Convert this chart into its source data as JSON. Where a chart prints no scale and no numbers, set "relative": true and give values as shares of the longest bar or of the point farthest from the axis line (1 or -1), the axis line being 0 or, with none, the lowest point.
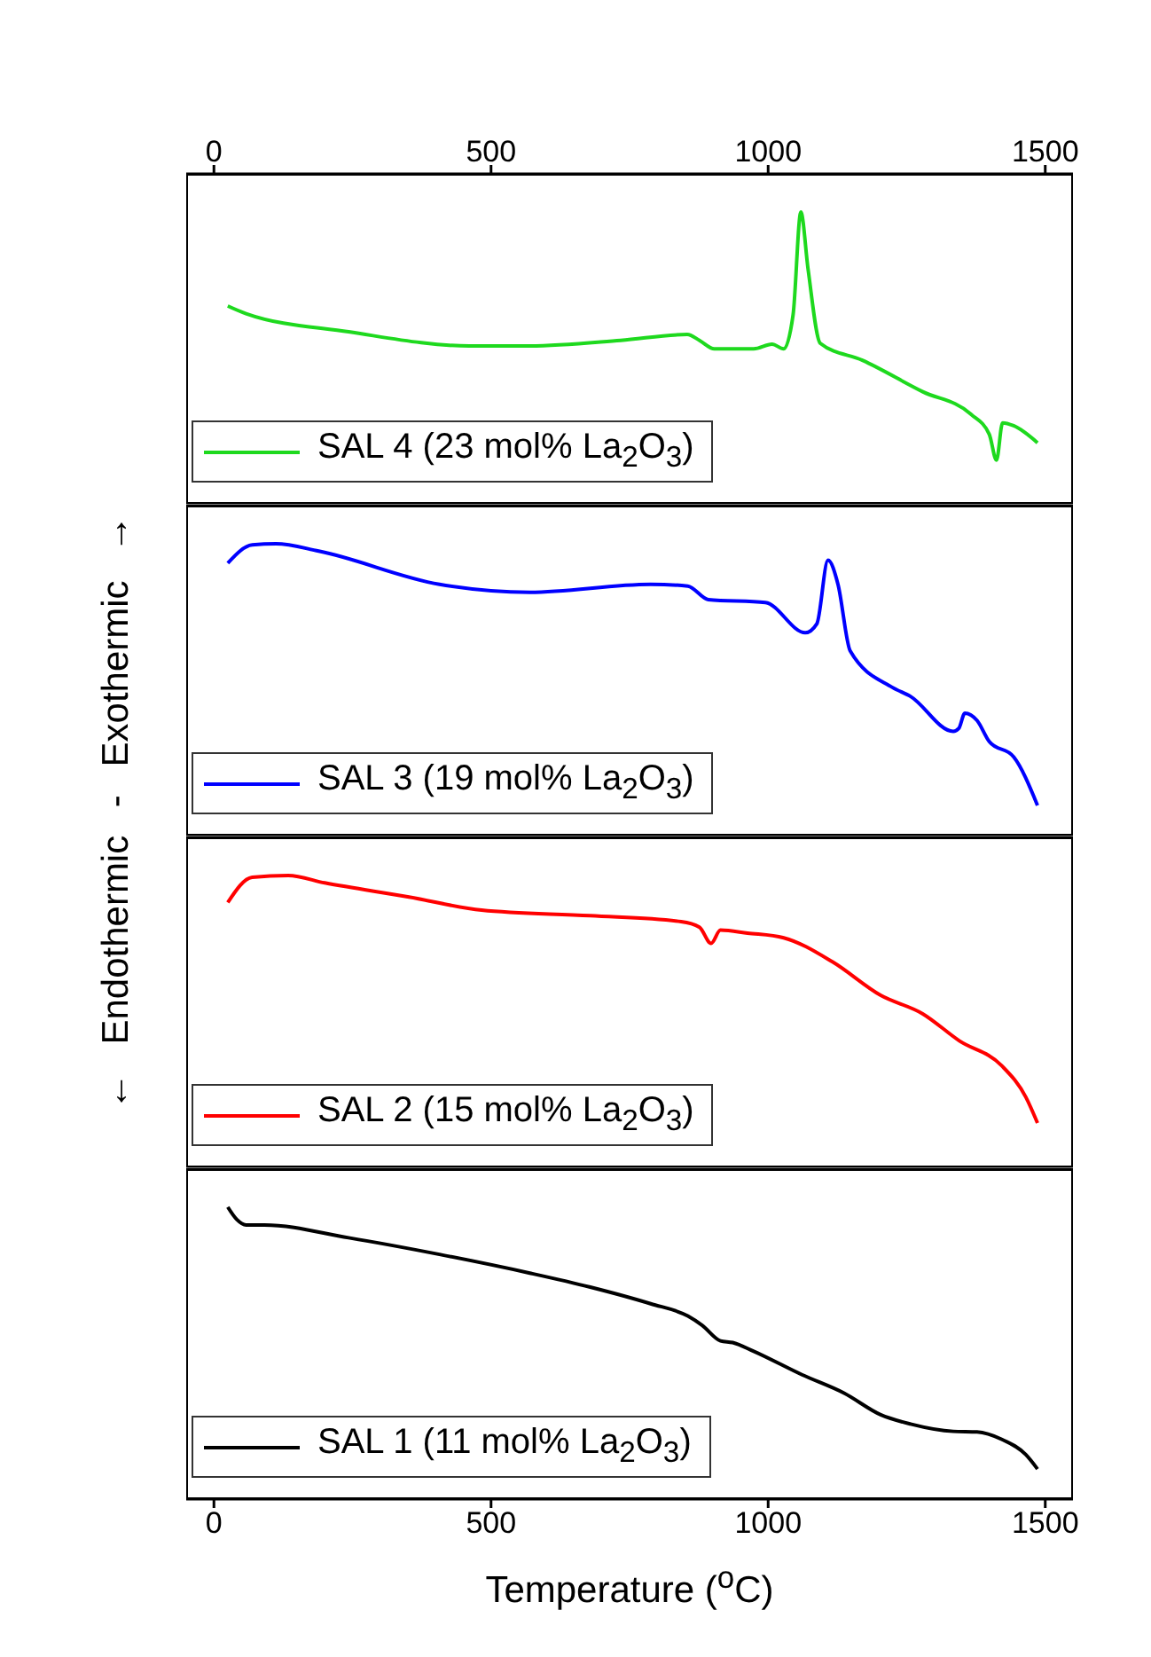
{
  "chart_data": [
    {
      "type": "line",
      "relative": true,
      "ylabel": "← Endothermic - Exothermic →",
      "xlim": [
        -50,
        1550
      ],
      "xticks": [
        0,
        500,
        1000,
        1500
      ],
      "x2lim": [
        -50,
        1550
      ],
      "x2ticks": [
        0,
        500,
        1000,
        1500
      ],
      "tick_labels": false,
      "legend": "bottom left",
      "grid": false,
      "series": [
        {
          "name": "SAL 4 (23 mol% La$_{2}$O$_{3}$)",
          "color": "#1ed91e",
          "x": [
            25,
            58,
            243,
            461,
            570,
            734,
            854,
            876,
            903,
            974,
            1007,
            1028,
            1045,
            1059,
            1072,
            1094,
            1170,
            1279,
            1366,
            1399,
            1412,
            1423,
            1443,
            1486
          ],
          "values": [
            0.68,
            0.654,
            0.592,
            0.544,
            0.544,
            0.563,
            0.583,
            0.563,
            0.534,
            0.534,
            0.55,
            0.534,
            0.65,
            1.0,
            0.806,
            0.553,
            0.495,
            0.388,
            0.311,
            0.243,
            0.155,
            0.282,
            0.272,
            0.214
          ]
        }
      ]
    },
    {
      "type": "line",
      "relative": true,
      "xlim": [
        -50,
        1550
      ],
      "xticks": [
        0,
        500,
        1000,
        1500
      ],
      "tick_labels": false,
      "legend": "bottom left",
      "grid": false,
      "series": [
        {
          "name": "SAL 3 (19 mol% La$_{2}$O$_{3}$)",
          "color": "#0000ff",
          "x": [
            25,
            69,
            112,
            189,
            407,
            570,
            788,
            855,
            892,
            995,
            1067,
            1088,
            1108,
            1126,
            1148,
            1224,
            1257,
            1334,
            1344,
            1355,
            1377,
            1399,
            1443,
            1486
          ],
          "values": [
            0.934,
            0.996,
            1.0,
            0.975,
            0.862,
            0.835,
            0.862,
            0.856,
            0.81,
            0.8,
            0.697,
            0.728,
            0.944,
            0.862,
            0.635,
            0.511,
            0.48,
            0.361,
            0.371,
            0.423,
            0.398,
            0.326,
            0.274,
            0.109
          ]
        }
      ]
    },
    {
      "type": "line",
      "relative": true,
      "xlim": [
        -50,
        1550
      ],
      "xticks": [
        0,
        500,
        1000,
        1500
      ],
      "tick_labels": false,
      "legend": "bottom left",
      "grid": false,
      "series": [
        {
          "name": "SAL 2 (15 mol% La$_{2}$O$_{3}$)",
          "color": "#ff0000",
          "x": [
            25,
            69,
            134,
            200,
            352,
            483,
            679,
            843,
            876,
            897,
            914,
            963,
            1028,
            1116,
            1203,
            1279,
            1345,
            1421,
            1465,
            1486
          ],
          "values": [
            0.908,
            0.994,
            1.0,
            0.975,
            0.927,
            0.882,
            0.863,
            0.843,
            0.824,
            0.769,
            0.814,
            0.804,
            0.788,
            0.706,
            0.592,
            0.529,
            0.437,
            0.353,
            0.245,
            0.157
          ]
        }
      ]
    },
    {
      "type": "line",
      "relative": true,
      "xlabel": "Temperature ($^{o}$C)",
      "xlim": [
        -50,
        1550
      ],
      "xticks": [
        0,
        500,
        1000,
        1500
      ],
      "tick_labels": "x",
      "legend": "bottom left",
      "grid": false,
      "series": [
        {
          "name": "SAL 1 (11 mol% La$_{2}$O$_{3}$)",
          "color": "#000000",
          "x": [
            25,
            41,
            58,
            91,
            243,
            407,
            570,
            679,
            788,
            855,
            881,
            914,
            936,
            974,
            1061,
            1137,
            1203,
            1257,
            1334,
            1377,
            1421,
            1465,
            1486
          ],
          "values": [
            1.0,
            0.958,
            0.939,
            0.939,
            0.895,
            0.838,
            0.774,
            0.726,
            0.669,
            0.627,
            0.595,
            0.542,
            0.536,
            0.506,
            0.426,
            0.363,
            0.289,
            0.257,
            0.232,
            0.23,
            0.205,
            0.152,
            0.103
          ]
        }
      ]
    }
  ]
}
